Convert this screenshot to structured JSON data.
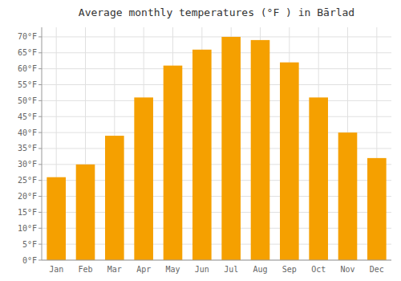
{
  "chart_data": {
    "type": "bar",
    "title": "Average monthly temperatures (°F ) in Bārlad",
    "categories": [
      "Jan",
      "Feb",
      "Mar",
      "Apr",
      "May",
      "Jun",
      "Jul",
      "Aug",
      "Sep",
      "Oct",
      "Nov",
      "Dec"
    ],
    "values": [
      26,
      30,
      39,
      51,
      61,
      66,
      70,
      69,
      62,
      51,
      40,
      32
    ],
    "color": "#F5A000",
    "ylim": [
      0,
      73
    ],
    "yticks": [
      {
        "value": 0,
        "label": "0°F"
      },
      {
        "value": 5,
        "label": "5°F"
      },
      {
        "value": 10,
        "label": "10°F"
      },
      {
        "value": 15,
        "label": "15°F"
      },
      {
        "value": 20,
        "label": "20°F"
      },
      {
        "value": 25,
        "label": "25°F"
      },
      {
        "value": 30,
        "label": "30°F"
      },
      {
        "value": 35,
        "label": "35°F"
      },
      {
        "value": 40,
        "label": "40°F"
      },
      {
        "value": 45,
        "label": "45°F"
      },
      {
        "value": 50,
        "label": "50°F"
      },
      {
        "value": 55,
        "label": "55°F"
      },
      {
        "value": 60,
        "label": "60°F"
      },
      {
        "value": 65,
        "label": "65°F"
      },
      {
        "value": 70,
        "label": "70°F"
      }
    ],
    "grid": true
  }
}
